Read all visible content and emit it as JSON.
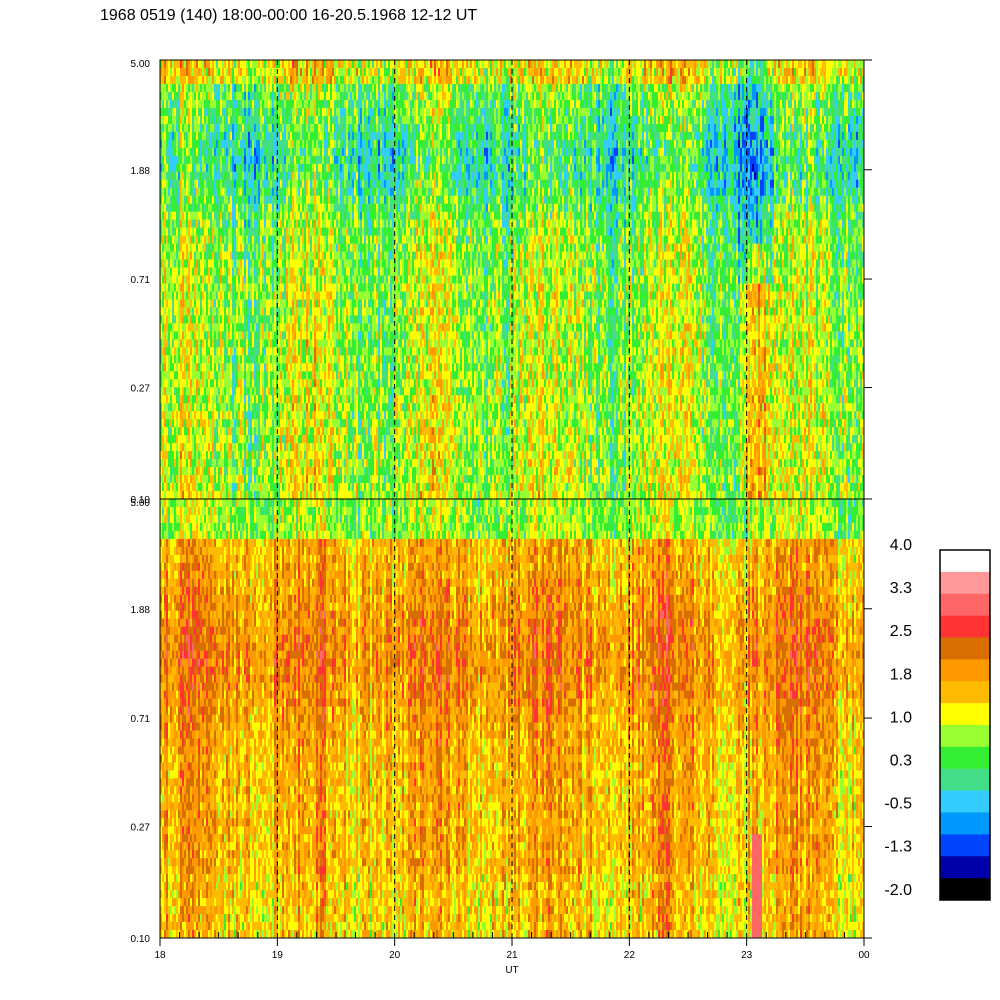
{
  "title": "1968 0519 (140) 18:00-00:00 16-20.5.1968  12-12 UT",
  "chart_data": {
    "type": "heatmap",
    "title": "1968 0519 (140) 18:00-00:00 16-20.5.1968  12-12 UT",
    "xlabel": "UT",
    "ylabel": "",
    "x_tick_labels": [
      "18",
      "19",
      "20",
      "21",
      "22",
      "23",
      "00"
    ],
    "y_tick_labels": [
      "0.10",
      "0.27",
      "0.71",
      "1.88",
      "5.00"
    ],
    "y_scale": "log",
    "ylim": [
      0.1,
      5.0
    ],
    "grid": "dashed vertical lines at each hour",
    "panels": [
      {
        "name": "upper",
        "dominant_levels": "-1.3 to 1.5",
        "note": "mostly green/cyan with blue streaks; yellow band near top"
      },
      {
        "name": "lower",
        "dominant_levels": "1.0 to 2.5",
        "note": "mostly orange/yellow; red streak near 23 UT"
      }
    ],
    "colorbar": {
      "labels": [
        "4.0",
        "3.3",
        "2.5",
        "1.8",
        "1.0",
        "0.3",
        "-0.5",
        "-1.3",
        "-2.0"
      ],
      "colors": [
        "#ffffff",
        "#ff9999",
        "#ff6666",
        "#ff3333",
        "#d96e00",
        "#ff9900",
        "#ffbb00",
        "#ffff00",
        "#99ff33",
        "#33ee33",
        "#44dd88",
        "#33ccff",
        "#0099ff",
        "#0044ff",
        "#0000aa",
        "#000000"
      ],
      "range": [
        -2.0,
        4.0
      ]
    }
  }
}
